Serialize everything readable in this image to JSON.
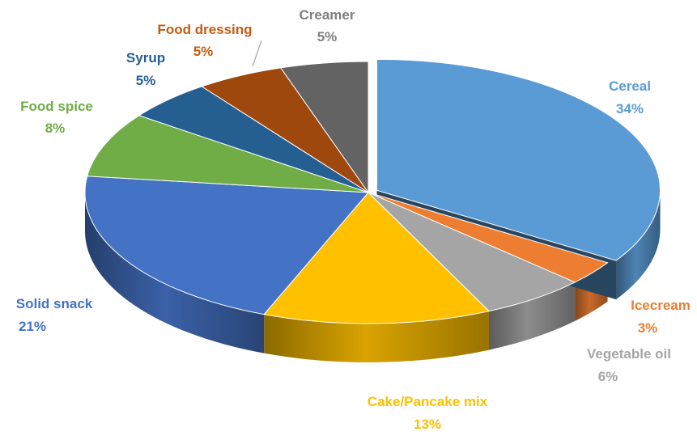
{
  "chart_data": {
    "type": "pie",
    "style": "3d-exploded",
    "title": "",
    "legend": "none",
    "slices": [
      {
        "label": "Cereal",
        "value": 34,
        "value_label": "34%",
        "color": "#5B9BD5",
        "text_color": "#5B9BD5"
      },
      {
        "label": "Icecream",
        "value": 3,
        "value_label": "3%",
        "color": "#ED7D31",
        "text_color": "#ED7D31"
      },
      {
        "label": "Vegetable oil",
        "value": 6,
        "value_label": "6%",
        "color": "#A5A5A5",
        "text_color": "#A5A5A5"
      },
      {
        "label": "Cake/Pancake mix",
        "value": 13,
        "value_label": "13%",
        "color": "#FFC000",
        "text_color": "#FFC000"
      },
      {
        "label": "Solid snack",
        "value": 21,
        "value_label": "21%",
        "color": "#4472C4",
        "text_color": "#4472C4"
      },
      {
        "label": "Food spice",
        "value": 8,
        "value_label": "8%",
        "color": "#70AD47",
        "text_color": "#70AD47"
      },
      {
        "label": "Syrup",
        "value": 5,
        "value_label": "5%",
        "color": "#255E91",
        "text_color": "#255E91"
      },
      {
        "label": "Food dressing",
        "value": 5,
        "value_label": "5%",
        "color": "#9E480E",
        "text_color": "#C55A11"
      },
      {
        "label": "Creamer",
        "value": 5,
        "value_label": "5%",
        "color": "#636363",
        "text_color": "#7F7F7F"
      }
    ]
  }
}
